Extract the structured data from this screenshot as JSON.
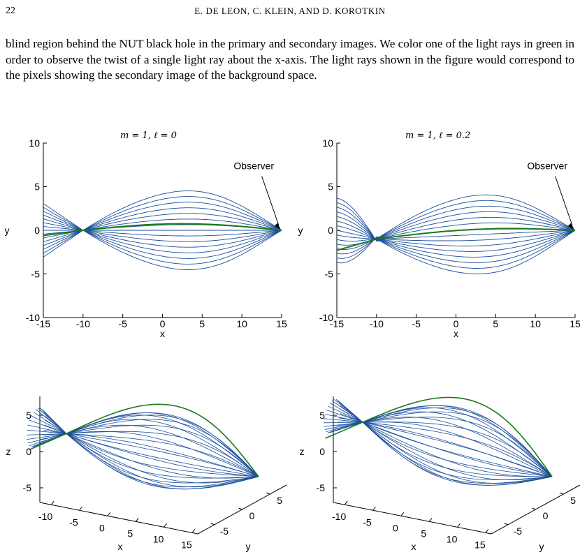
{
  "header": {
    "page_number": "22",
    "running_head": "E. DE LEON, C. KLEIN, AND D. KOROTKIN"
  },
  "body_text": "blind region behind the NUT black hole in the primary and secondary images. We color one of the light rays in green in order to observe the twist of a single light ray about the x-axis. The light rays shown in the figure would correspond to the pixels showing the secondary image of the background space.",
  "colors": {
    "rays": "#1a4e9c",
    "highlight": "#1a7a1a"
  },
  "chart_data": [
    {
      "type": "line",
      "title": "m = 1,   ℓ = 0",
      "xlabel": "x",
      "ylabel": "y",
      "xlim": [
        -15,
        15
      ],
      "ylim": [
        -10,
        10
      ],
      "xticks": [
        "-15",
        "-10",
        "-5",
        "0",
        "5",
        "10",
        "15"
      ],
      "yticks": [
        "-10",
        "-5",
        "0",
        "5",
        "10"
      ],
      "annotation": "Observer",
      "rays": {
        "count": 15,
        "amplitude_max": 4.5,
        "focus_x": -10,
        "observer_x": 15
      }
    },
    {
      "type": "line",
      "title": "m = 1,   ℓ = 0.2",
      "xlabel": "x",
      "ylabel": "y",
      "xlim": [
        -15,
        15
      ],
      "ylim": [
        -10,
        10
      ],
      "xticks": [
        "-15",
        "-10",
        "-5",
        "0",
        "5",
        "10",
        "15"
      ],
      "yticks": [
        "-10",
        "-5",
        "0",
        "5",
        "10"
      ],
      "annotation": "Observer",
      "rays": {
        "count": 15,
        "amplitude_max": 4.5,
        "focus_x": -10,
        "observer_x": 15
      }
    },
    {
      "type": "line",
      "title": "",
      "xlabel": "x",
      "ylabel": "y",
      "zlabel": "z",
      "xticks": [
        "-10",
        "-5",
        "0",
        "5",
        "10",
        "15"
      ],
      "yticks": [
        "-5",
        "0",
        "5"
      ],
      "zticks": [
        "-5",
        "0",
        "5"
      ]
    },
    {
      "type": "line",
      "title": "",
      "xlabel": "x",
      "ylabel": "y",
      "zlabel": "z",
      "xticks": [
        "-10",
        "-5",
        "0",
        "5",
        "10",
        "15"
      ],
      "yticks": [
        "-5",
        "0",
        "5"
      ],
      "zticks": [
        "-5",
        "0",
        "5"
      ]
    }
  ]
}
